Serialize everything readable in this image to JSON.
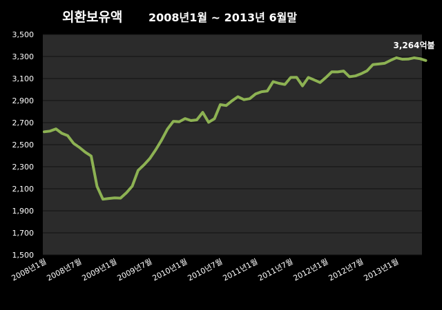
{
  "chart_data": {
    "type": "line",
    "title": "외환보유액",
    "subtitle": "2008년1월 ~ 2013년 6월말",
    "ylim": [
      1500,
      3500
    ],
    "yticks": [
      "1,500",
      "1,700",
      "1,900",
      "2,100",
      "2,300",
      "2,500",
      "2,700",
      "2,900",
      "3,100",
      "3,300",
      "3,500"
    ],
    "xtick_labels": [
      "2008년1월",
      "2008년7월",
      "2009년1월",
      "2009년7월",
      "2010년1월",
      "2010년7월",
      "2011년1월",
      "2011년7월",
      "2012년1월",
      "2012년7월",
      "2013년1월"
    ],
    "grid": true,
    "line_color": "#8db253",
    "series": [
      {
        "values": [
          2617,
          2623,
          2643,
          2603,
          2582,
          2512,
          2475,
          2432,
          2397,
          2122,
          2005,
          2012,
          2017,
          2015,
          2063,
          2124,
          2267,
          2317,
          2375,
          2454,
          2542,
          2642,
          2712,
          2708,
          2737,
          2719,
          2725,
          2793,
          2703,
          2735,
          2863,
          2855,
          2898,
          2935,
          2909,
          2917,
          2960,
          2980,
          2986,
          3072,
          3056,
          3046,
          3110,
          3111,
          3034,
          3110,
          3087,
          3064,
          3110,
          3161,
          3160,
          3168,
          3116,
          3124,
          3144,
          3170,
          3226,
          3232,
          3238,
          3265,
          3289,
          3275,
          3276,
          3288,
          3280,
          3264
        ]
      }
    ],
    "annotation": "3,264억불"
  }
}
